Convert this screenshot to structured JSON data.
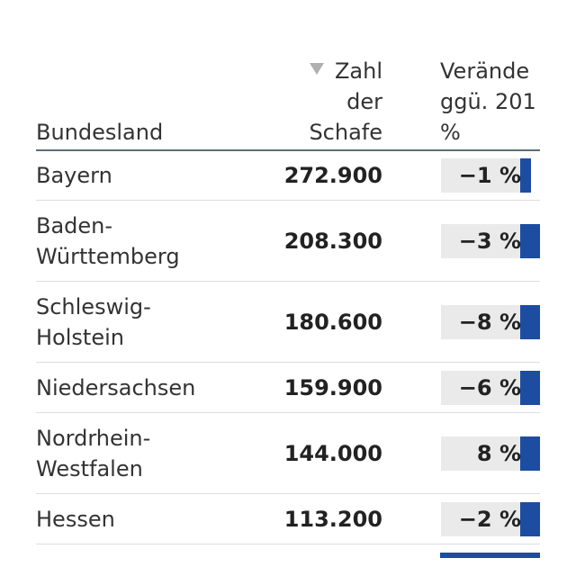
{
  "chart_data": {
    "type": "table",
    "columns": {
      "state": "Bundesland",
      "count": [
        "Zahl",
        "der",
        "Schafe"
      ],
      "change": [
        "Verände",
        "ggü. 201",
        "%"
      ]
    },
    "sort": {
      "column": "count",
      "direction": "descending"
    },
    "rows": [
      {
        "state": [
          "Bayern"
        ],
        "count": "272.900",
        "change_label": "−1 %",
        "change_value": -1
      },
      {
        "state": [
          "Baden-",
          "Württemberg"
        ],
        "count": "208.300",
        "change_label": "−3 %",
        "change_value": -3
      },
      {
        "state": [
          "Schleswig-",
          "Holstein"
        ],
        "count": "180.600",
        "change_label": "−8 %",
        "change_value": -8
      },
      {
        "state": [
          "Niedersachsen"
        ],
        "count": "159.900",
        "change_label": "−6 %",
        "change_value": -6
      },
      {
        "state": [
          "Nordrhein-",
          "Westfalen"
        ],
        "count": "144.000",
        "change_label": "8 %",
        "change_value": 8
      },
      {
        "state": [
          "Hessen"
        ],
        "count": "113.200",
        "change_label": "−2 %",
        "change_value": -2
      }
    ],
    "colors": {
      "bar": "#1c4da1",
      "bar_background": "#eaeaea",
      "rule": "#5a6f78",
      "sort_icon": "#b0b0b0"
    }
  }
}
